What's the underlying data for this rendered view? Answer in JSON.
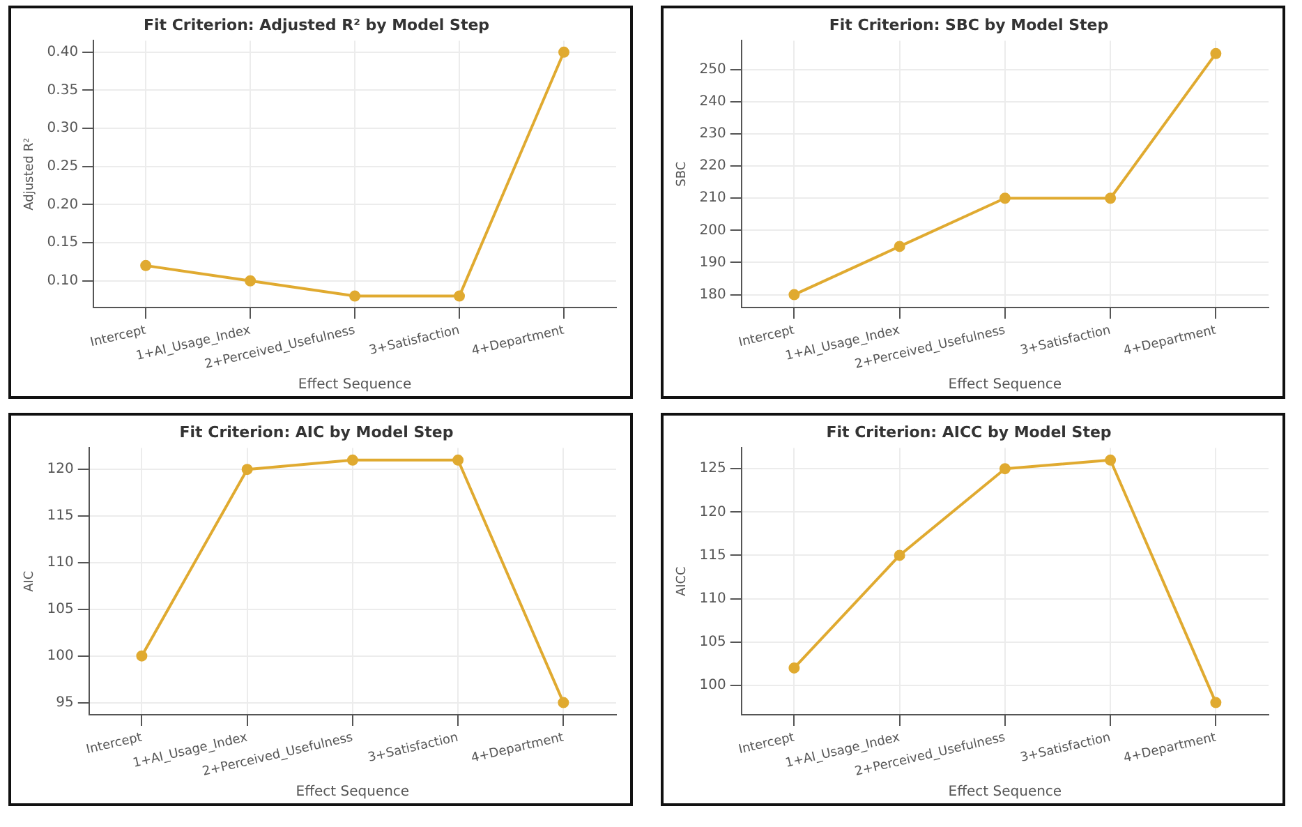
{
  "chart_data": [
    {
      "type": "line",
      "title": "Fit Criterion: Adjusted R² by Model Step",
      "xlabel": "Effect Sequence",
      "ylabel": "Adjusted R²",
      "categories": [
        "Intercept",
        "1+AI_Usage_Index",
        "2+Perceived_Usefulness",
        "3+Satisfaction",
        "4+Department"
      ],
      "series": [
        {
          "color": "#e0aa30",
          "values": [
            0.12,
            0.1,
            0.08,
            0.08,
            0.4
          ]
        }
      ],
      "ylim": [
        0.065,
        0.415
      ],
      "yticks": [
        {
          "value": 0.1,
          "label": "0.10"
        },
        {
          "value": 0.15,
          "label": "0.15"
        },
        {
          "value": 0.2,
          "label": "0.20"
        },
        {
          "value": 0.25,
          "label": "0.25"
        },
        {
          "value": 0.3,
          "label": "0.30"
        },
        {
          "value": 0.35,
          "label": "0.35"
        },
        {
          "value": 0.4,
          "label": "0.40"
        }
      ],
      "grid": true,
      "marker": "circle"
    },
    {
      "type": "line",
      "title": "Fit Criterion: SBC by Model Step",
      "xlabel": "Effect Sequence",
      "ylabel": "SBC",
      "categories": [
        "Intercept",
        "1+AI_Usage_Index",
        "2+Perceived_Usefulness",
        "3+Satisfaction",
        "4+Department"
      ],
      "series": [
        {
          "color": "#e0aa30",
          "values": [
            180,
            195,
            210,
            210,
            255
          ]
        }
      ],
      "ylim": [
        176,
        259
      ],
      "yticks": [
        180,
        190,
        200,
        210,
        220,
        230,
        240,
        250
      ],
      "grid": true,
      "marker": "circle"
    },
    {
      "type": "line",
      "title": "Fit Criterion: AIC by Model Step",
      "xlabel": "Effect Sequence",
      "ylabel": "AIC",
      "categories": [
        "Intercept",
        "1+AI_Usage_Index",
        "2+Perceived_Usefulness",
        "3+Satisfaction",
        "4+Department"
      ],
      "series": [
        {
          "color": "#e0aa30",
          "values": [
            100,
            120,
            121,
            121,
            95
          ]
        }
      ],
      "ylim": [
        93.7,
        122.3
      ],
      "yticks": [
        95,
        100,
        105,
        110,
        115,
        120
      ],
      "grid": true,
      "marker": "circle"
    },
    {
      "type": "line",
      "title": "Fit Criterion: AICC by Model Step",
      "xlabel": "Effect Sequence",
      "ylabel": "AICC",
      "categories": [
        "Intercept",
        "1+AI_Usage_Index",
        "2+Perceived_Usefulness",
        "3+Satisfaction",
        "4+Department"
      ],
      "series": [
        {
          "color": "#e0aa30",
          "values": [
            102,
            115,
            125,
            126,
            98
          ]
        }
      ],
      "ylim": [
        96.6,
        127.4
      ],
      "yticks": [
        100,
        105,
        110,
        115,
        120,
        125
      ],
      "grid": true,
      "marker": "circle"
    }
  ]
}
